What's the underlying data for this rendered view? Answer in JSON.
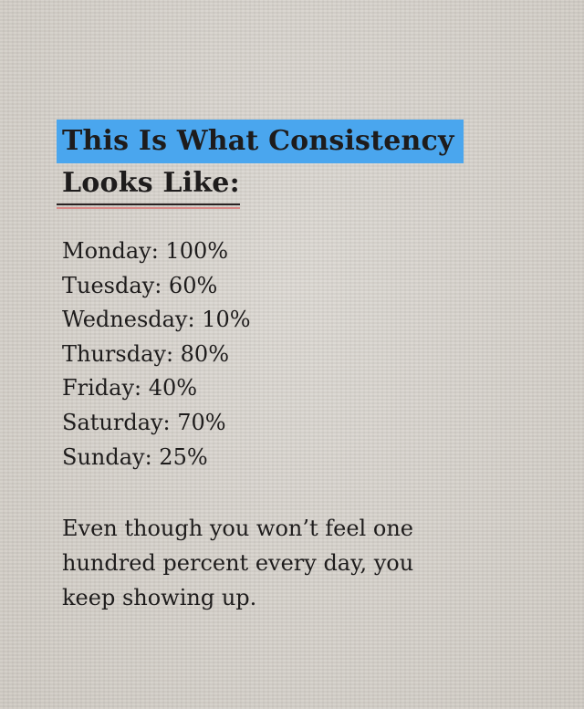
{
  "title": {
    "line1": "This Is What Consistency",
    "line2": "Looks Like:"
  },
  "days": [
    {
      "label": "Monday: 100%"
    },
    {
      "label": "Tuesday: 60%"
    },
    {
      "label": "Wednesday: 10%"
    },
    {
      "label": "Thursday: 80%"
    },
    {
      "label": "Friday: 40%"
    },
    {
      "label": "Saturday: 70%"
    },
    {
      "label": "Sunday: 25%"
    }
  ],
  "message": {
    "lines": [
      "Even though you won’t feel one",
      "hundred percent every day, you",
      "keep showing up."
    ]
  },
  "colors": {
    "highlight": "#4aa6ee",
    "paper": "#d5d1cb",
    "underline_accent": "#d98a88"
  }
}
